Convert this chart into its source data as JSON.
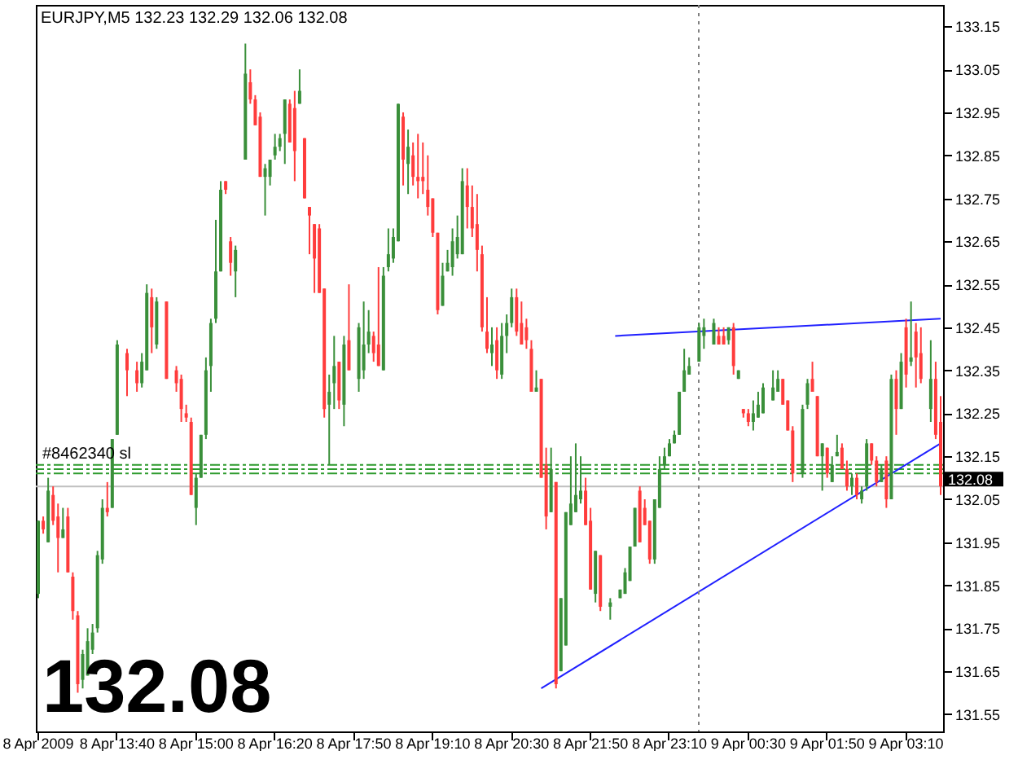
{
  "chart_data": {
    "type": "candlestick",
    "title": "EURJPY,M5  132.23 132.29 132.06 132.08",
    "categories": [
      "8 Apr 2009",
      null,
      null,
      null,
      null,
      null,
      null,
      null,
      null,
      null,
      null,
      null,
      null,
      null,
      null,
      null,
      "8 Apr 13:40",
      null,
      null,
      null,
      null,
      null,
      null,
      null,
      null,
      null,
      null,
      null,
      null,
      null,
      null,
      null,
      "8 Apr 15:00",
      null,
      null,
      null,
      null,
      null,
      null,
      null,
      null,
      null,
      null,
      null,
      null,
      null,
      null,
      null,
      "8 Apr 16:20",
      null,
      null,
      null,
      null,
      null,
      null,
      null,
      null,
      null,
      null,
      null,
      null,
      null,
      null,
      null,
      "8 Apr 17:50",
      null,
      null,
      null,
      null,
      null,
      null,
      null,
      null,
      null,
      null,
      null,
      null,
      null,
      null,
      null,
      "8 Apr 19:10",
      null,
      null,
      null,
      null,
      null,
      null,
      null,
      null,
      null,
      null,
      null,
      null,
      null,
      null,
      null,
      "8 Apr 20:30",
      null,
      null,
      null,
      null,
      null,
      null,
      null,
      null,
      null,
      null,
      null,
      null,
      null,
      null,
      null,
      "8 Apr 21:50",
      null,
      null,
      null,
      null,
      null,
      null,
      null,
      null,
      null,
      null,
      null,
      null,
      null,
      null,
      null,
      "8 Apr 23:10",
      null,
      null,
      null,
      null,
      null,
      null,
      null,
      null,
      null,
      null,
      null,
      null,
      null,
      null,
      null,
      "9 Apr 00:30",
      null,
      null,
      null,
      null,
      null,
      null,
      null,
      null,
      null,
      null,
      null,
      null,
      null,
      null,
      null,
      "9 Apr 01:50",
      null,
      null,
      null,
      null,
      null,
      null,
      null,
      null,
      null,
      null,
      null,
      null,
      null,
      null,
      null,
      "9 Apr 03:10",
      null,
      null,
      null,
      null,
      null,
      null,
      null
    ],
    "ohlc": [
      [
        131.83,
        132.0,
        131.82,
        132.0
      ],
      [
        132.0,
        132.01,
        131.97,
        131.98
      ],
      [
        131.95,
        132.1,
        131.95,
        132.07
      ],
      [
        132.06,
        132.08,
        131.99,
        132.0
      ],
      [
        132.01,
        132.04,
        131.88,
        131.96
      ],
      [
        131.96,
        132.03,
        131.96,
        131.98
      ],
      [
        132.01,
        132.03,
        131.88,
        131.88
      ],
      [
        131.87,
        131.88,
        131.77,
        131.79
      ],
      [
        131.78,
        131.79,
        131.6,
        131.62
      ],
      [
        131.63,
        131.7,
        131.61,
        131.69
      ],
      [
        131.64,
        131.75,
        131.64,
        131.72
      ],
      [
        131.7,
        131.76,
        131.69,
        131.74
      ],
      [
        131.75,
        131.93,
        131.74,
        131.92
      ],
      [
        131.91,
        132.05,
        131.9,
        132.03
      ],
      [
        132.03,
        132.09,
        132.01,
        132.02
      ],
      [
        132.03,
        132.19,
        132.03,
        132.19
      ],
      [
        132.2,
        132.42,
        132.2,
        132.41
      ],
      null,
      [
        132.39,
        132.4,
        132.29,
        132.35
      ],
      null,
      [
        132.35,
        132.37,
        132.3,
        132.32
      ],
      [
        132.32,
        132.39,
        132.31,
        132.37
      ],
      [
        132.35,
        132.55,
        132.35,
        132.53
      ],
      [
        132.52,
        132.54,
        132.39,
        132.45
      ],
      [
        132.41,
        132.52,
        132.4,
        132.51
      ],
      null,
      [
        132.51,
        132.51,
        132.33,
        132.33
      ],
      null,
      [
        132.35,
        132.36,
        132.3,
        132.32
      ],
      [
        132.33,
        132.34,
        132.23,
        132.26
      ],
      [
        132.25,
        132.27,
        132.23,
        132.24
      ],
      [
        132.23,
        132.24,
        132.06,
        132.06
      ],
      [
        132.03,
        132.11,
        131.99,
        132.1
      ],
      [
        132.1,
        132.2,
        132.1,
        132.2
      ],
      [
        132.2,
        132.38,
        132.19,
        132.35
      ],
      [
        132.36,
        132.47,
        132.3,
        132.46
      ],
      [
        132.47,
        132.7,
        132.46,
        132.58
      ],
      [
        132.58,
        132.79,
        132.58,
        132.77
      ],
      [
        132.79,
        132.79,
        132.76,
        132.77
      ],
      [
        132.65,
        132.66,
        132.57,
        132.6
      ],
      [
        132.58,
        132.64,
        132.52,
        132.63
      ],
      null,
      [
        132.84,
        133.11,
        132.84,
        133.04
      ],
      [
        133.02,
        133.05,
        132.97,
        132.98
      ],
      [
        132.98,
        132.99,
        132.92,
        132.92
      ],
      [
        132.94,
        132.95,
        132.8,
        132.8
      ],
      [
        132.8,
        132.83,
        132.71,
        132.82
      ],
      [
        132.8,
        132.84,
        132.78,
        132.84
      ],
      [
        132.85,
        132.9,
        132.84,
        132.87
      ],
      [
        132.87,
        132.9,
        132.86,
        132.89
      ],
      [
        132.9,
        132.98,
        132.83,
        132.98
      ],
      [
        132.97,
        132.98,
        132.88,
        132.88
      ],
      [
        132.96,
        133.0,
        132.79,
        132.86
      ],
      [
        132.97,
        133.05,
        132.97,
        133.0
      ],
      [
        132.89,
        132.89,
        132.75,
        132.75
      ],
      [
        132.73,
        132.73,
        132.62,
        132.71
      ],
      [
        132.69,
        132.69,
        132.53,
        132.61
      ],
      [
        132.68,
        132.69,
        132.53,
        132.53
      ],
      [
        132.54,
        132.54,
        132.24,
        132.26
      ],
      [
        132.27,
        132.34,
        132.13,
        132.3
      ],
      [
        132.32,
        132.43,
        132.26,
        132.36
      ],
      [
        132.37,
        132.37,
        132.26,
        132.28
      ],
      [
        132.27,
        132.43,
        132.22,
        132.41
      ],
      [
        132.42,
        132.55,
        132.35,
        132.35
      ],
      null,
      [
        132.33,
        132.46,
        132.3,
        132.45
      ],
      [
        132.35,
        132.51,
        132.33,
        132.41
      ],
      [
        132.41,
        132.49,
        132.39,
        132.44
      ],
      [
        132.43,
        132.44,
        132.37,
        132.39
      ],
      [
        132.41,
        132.59,
        132.36,
        132.36
      ],
      [
        132.35,
        132.59,
        132.35,
        132.57
      ],
      [
        132.59,
        132.68,
        132.58,
        132.62
      ],
      [
        132.61,
        132.68,
        132.6,
        132.66
      ],
      [
        132.65,
        132.97,
        132.65,
        132.97
      ],
      [
        132.94,
        132.95,
        132.78,
        132.84
      ],
      [
        132.83,
        132.91,
        132.76,
        132.87
      ],
      [
        132.85,
        132.88,
        132.78,
        132.8
      ],
      [
        132.8,
        132.9,
        132.75,
        132.79
      ],
      [
        132.8,
        132.88,
        132.76,
        132.79
      ],
      [
        132.77,
        132.85,
        132.71,
        132.73
      ],
      [
        132.75,
        132.75,
        132.66,
        132.67
      ],
      [
        132.67,
        132.67,
        132.48,
        132.49
      ],
      [
        132.5,
        132.6,
        132.5,
        132.57
      ],
      [
        132.58,
        132.63,
        132.58,
        132.6
      ],
      [
        132.59,
        132.68,
        132.57,
        132.65
      ],
      [
        132.62,
        132.71,
        132.61,
        132.66
      ],
      [
        132.62,
        132.82,
        132.62,
        132.79
      ],
      [
        132.78,
        132.82,
        132.68,
        132.73
      ],
      [
        132.73,
        132.78,
        132.66,
        132.68
      ],
      [
        132.69,
        132.76,
        132.58,
        132.63
      ],
      [
        132.62,
        132.64,
        132.44,
        132.45
      ],
      [
        132.44,
        132.52,
        132.39,
        132.4
      ],
      [
        132.39,
        132.45,
        132.36,
        132.41
      ],
      [
        132.42,
        132.45,
        132.33,
        132.35
      ],
      [
        132.34,
        132.46,
        132.33,
        132.43
      ],
      [
        132.43,
        132.48,
        132.39,
        132.46
      ],
      [
        132.46,
        132.54,
        132.45,
        132.52
      ],
      [
        132.52,
        132.54,
        132.43,
        132.44
      ],
      [
        132.46,
        132.51,
        132.41,
        132.41
      ],
      [
        132.45,
        132.47,
        132.4,
        132.42
      ],
      [
        132.4,
        132.42,
        132.3,
        132.3
      ],
      [
        132.3,
        132.35,
        132.3,
        132.31
      ],
      [
        132.33,
        132.33,
        132.1,
        132.1
      ],
      [
        132.13,
        132.17,
        131.98,
        132.01
      ],
      [
        132.02,
        132.17,
        132.02,
        132.12
      ],
      [
        132.09,
        132.09,
        131.61,
        131.62
      ],
      [
        131.65,
        131.82,
        131.65,
        131.82
      ],
      [
        131.71,
        132.02,
        131.71,
        132.02
      ],
      [
        131.99,
        132.15,
        131.99,
        132.04
      ],
      [
        132.02,
        132.18,
        132.02,
        132.06
      ],
      [
        132.05,
        132.15,
        132.04,
        132.07
      ],
      [
        132.07,
        132.1,
        131.99,
        131.99
      ],
      [
        132.0,
        132.03,
        131.84,
        131.84
      ],
      [
        131.83,
        131.93,
        131.81,
        131.93
      ],
      [
        131.92,
        131.92,
        131.79,
        131.8
      ],
      null,
      [
        131.8,
        131.82,
        131.77,
        131.81
      ],
      null,
      [
        131.82,
        131.84,
        131.82,
        131.84
      ],
      [
        131.83,
        131.89,
        131.83,
        131.88
      ],
      [
        131.86,
        131.94,
        131.86,
        131.94
      ],
      [
        131.94,
        132.03,
        131.94,
        132.03
      ],
      [
        132.07,
        132.08,
        131.95,
        131.95
      ],
      [
        132.03,
        132.05,
        131.99,
        131.99
      ],
      [
        132.0,
        132.0,
        131.9,
        131.91
      ],
      [
        131.91,
        132.05,
        131.9,
        132.05
      ],
      [
        132.03,
        132.15,
        132.03,
        132.12
      ],
      [
        132.13,
        132.17,
        132.12,
        132.15
      ],
      [
        132.15,
        132.19,
        132.15,
        132.18
      ],
      [
        132.18,
        132.21,
        132.18,
        132.2
      ],
      [
        132.2,
        132.3,
        132.2,
        132.3
      ],
      [
        132.3,
        132.4,
        132.3,
        132.35
      ],
      [
        132.34,
        132.38,
        132.34,
        132.36
      ],
      null,
      [
        132.37,
        132.46,
        132.37,
        132.45
      ],
      [
        132.43,
        132.47,
        132.4,
        132.45
      ],
      null,
      [
        132.41,
        132.47,
        132.41,
        132.46
      ],
      [
        132.43,
        132.45,
        132.41,
        132.41
      ],
      [
        132.43,
        132.45,
        132.41,
        132.41
      ],
      [
        132.42,
        132.45,
        132.41,
        132.45
      ],
      [
        132.45,
        132.46,
        132.34,
        132.36
      ],
      [
        132.33,
        132.35,
        132.33,
        132.35
      ],
      [
        132.26,
        132.26,
        132.24,
        132.25
      ],
      [
        132.25,
        132.26,
        132.22,
        132.23
      ],
      [
        132.23,
        132.28,
        132.21,
        132.25
      ],
      [
        132.24,
        132.3,
        132.24,
        132.27
      ],
      [
        132.25,
        132.32,
        132.25,
        132.31
      ],
      null,
      [
        132.28,
        132.35,
        132.28,
        132.31
      ],
      [
        132.3,
        132.35,
        132.3,
        132.33
      ],
      [
        132.33,
        132.33,
        132.27,
        132.27
      ],
      [
        132.28,
        132.28,
        132.21,
        132.21
      ],
      [
        132.21,
        132.22,
        132.09,
        132.11
      ],
      null,
      [
        132.11,
        132.27,
        132.1,
        132.26
      ],
      [
        132.27,
        132.33,
        132.26,
        132.32
      ],
      [
        132.33,
        132.37,
        132.3,
        132.3
      ],
      [
        132.29,
        132.29,
        132.15,
        132.15
      ],
      [
        132.15,
        132.18,
        132.07,
        132.18
      ],
      [
        132.17,
        132.17,
        132.1,
        132.11
      ],
      [
        132.09,
        132.15,
        132.09,
        132.13
      ],
      [
        132.15,
        132.2,
        132.15,
        132.16
      ],
      [
        132.17,
        132.18,
        132.12,
        132.12
      ],
      [
        132.12,
        132.14,
        132.07,
        132.08
      ],
      [
        132.08,
        132.11,
        132.06,
        132.1
      ],
      [
        132.1,
        132.11,
        132.05,
        132.06
      ],
      [
        132.05,
        132.08,
        132.04,
        132.07
      ],
      [
        132.08,
        132.19,
        132.07,
        132.18
      ],
      [
        132.18,
        132.18,
        132.13,
        132.14
      ],
      [
        132.14,
        132.15,
        132.08,
        132.09
      ],
      [
        132.09,
        132.13,
        132.09,
        132.12
      ],
      [
        132.14,
        132.15,
        132.03,
        132.05
      ],
      [
        132.05,
        132.34,
        132.05,
        132.33
      ],
      [
        132.33,
        132.35,
        132.2,
        132.26
      ],
      [
        132.26,
        132.39,
        132.26,
        132.37
      ],
      [
        132.45,
        132.47,
        132.31,
        132.34
      ],
      [
        132.37,
        132.51,
        132.36,
        132.38
      ],
      [
        132.44,
        132.46,
        132.31,
        132.38
      ],
      [
        132.39,
        132.45,
        132.32,
        132.33
      ],
      null,
      [
        132.26,
        132.42,
        132.23,
        132.33
      ],
      [
        132.33,
        132.37,
        132.19,
        132.2
      ],
      [
        132.23,
        132.29,
        132.06,
        132.08
      ]
    ],
    "colors": [
      "#3a8f3a",
      "#ff3c3c",
      "#3a8f3a",
      "#ff3c3c",
      "#ff3c3c",
      "#3a8f3a",
      "#ff3c3c",
      "#ff3c3c",
      "#ff3c3c",
      "#3a8f3a",
      "#3a8f3a",
      "#3a8f3a",
      "#3a8f3a",
      "#3a8f3a",
      "#ff3c3c",
      "#3a8f3a",
      "#3a8f3a",
      null,
      "#ff3c3c",
      null,
      "#ff3c3c",
      "#3a8f3a",
      "#3a8f3a",
      "#ff3c3c",
      "#3a8f3a",
      null,
      "#ff3c3c",
      null,
      "#ff3c3c",
      "#ff3c3c",
      "#ff3c3c",
      "#ff3c3c",
      "#3a8f3a",
      "#3a8f3a",
      "#3a8f3a",
      "#3a8f3a",
      "#3a8f3a",
      "#3a8f3a",
      "#ff3c3c",
      "#ff3c3c",
      "#3a8f3a",
      null,
      "#3a8f3a",
      "#ff3c3c",
      "#ff3c3c",
      "#ff3c3c",
      "#3a8f3a",
      "#3a8f3a",
      "#3a8f3a",
      "#3a8f3a",
      "#3a8f3a",
      "#ff3c3c",
      "#ff3c3c",
      "#3a8f3a",
      "#ff3c3c",
      "#ff3c3c",
      "#ff3c3c",
      "#ff3c3c",
      "#ff3c3c",
      "#3a8f3a",
      "#3a8f3a",
      "#ff3c3c",
      "#3a8f3a",
      "#ff3c3c",
      null,
      "#3a8f3a",
      "#3a8f3a",
      "#3a8f3a",
      "#ff3c3c",
      "#ff3c3c",
      "#3a8f3a",
      "#3a8f3a",
      "#3a8f3a",
      "#3a8f3a",
      "#ff3c3c",
      "#3a8f3a",
      "#ff3c3c",
      "#ff3c3c",
      "#ff3c3c",
      "#ff3c3c",
      "#ff3c3c",
      "#ff3c3c",
      "#3a8f3a",
      "#3a8f3a",
      "#3a8f3a",
      "#3a8f3a",
      "#3a8f3a",
      "#ff3c3c",
      "#ff3c3c",
      "#ff3c3c",
      "#ff3c3c",
      "#ff3c3c",
      "#3a8f3a",
      "#ff3c3c",
      "#3a8f3a",
      "#3a8f3a",
      "#3a8f3a",
      "#ff3c3c",
      "#ff3c3c",
      "#ff3c3c",
      "#ff3c3c",
      "#3a8f3a",
      "#ff3c3c",
      "#ff3c3c",
      "#3a8f3a",
      "#ff3c3c",
      "#3a8f3a",
      "#3a8f3a",
      "#3a8f3a",
      "#3a8f3a",
      "#3a8f3a",
      "#ff3c3c",
      "#ff3c3c",
      "#3a8f3a",
      "#ff3c3c",
      null,
      "#3a8f3a",
      null,
      "#3a8f3a",
      "#3a8f3a",
      "#3a8f3a",
      "#3a8f3a",
      "#ff3c3c",
      "#ff3c3c",
      "#ff3c3c",
      "#3a8f3a",
      "#3a8f3a",
      "#3a8f3a",
      "#3a8f3a",
      "#3a8f3a",
      "#3a8f3a",
      "#3a8f3a",
      "#3a8f3a",
      null,
      "#3a8f3a",
      "#3a8f3a",
      null,
      "#3a8f3a",
      "#ff3c3c",
      "#ff3c3c",
      "#3a8f3a",
      "#ff3c3c",
      "#3a8f3a",
      "#ff3c3c",
      "#ff3c3c",
      "#3a8f3a",
      "#3a8f3a",
      "#3a8f3a",
      null,
      "#3a8f3a",
      "#3a8f3a",
      "#ff3c3c",
      "#ff3c3c",
      "#ff3c3c",
      null,
      "#3a8f3a",
      "#3a8f3a",
      "#ff3c3c",
      "#ff3c3c",
      "#3a8f3a",
      "#ff3c3c",
      "#3a8f3a",
      "#3a8f3a",
      "#ff3c3c",
      "#ff3c3c",
      "#3a8f3a",
      "#ff3c3c",
      "#3a8f3a",
      "#3a8f3a",
      "#ff3c3c",
      "#ff3c3c",
      "#3a8f3a",
      "#ff3c3c",
      "#3a8f3a",
      "#ff3c3c",
      "#3a8f3a",
      "#ff3c3c",
      "#3a8f3a",
      "#ff3c3c",
      "#ff3c3c",
      null,
      "#3a8f3a",
      "#ff3c3c",
      "#ff3c3c"
    ],
    "series": [
      {
        "type": "line",
        "color": "#2020ff",
        "values": [
          null,
          null,
          null,
          null,
          null,
          null,
          null,
          null,
          null,
          null,
          null,
          null,
          null,
          null,
          null,
          null,
          null,
          null,
          null,
          null,
          null,
          null,
          null,
          null,
          null,
          null,
          null,
          null,
          null,
          null,
          null,
          null,
          null,
          null,
          null,
          null,
          null,
          null,
          null,
          null,
          null,
          null,
          null,
          null,
          null,
          null,
          null,
          null,
          null,
          null,
          null,
          null,
          null,
          null,
          null,
          null,
          null,
          null,
          null,
          null,
          null,
          null,
          null,
          null,
          null,
          null,
          null,
          null,
          null,
          null,
          null,
          null,
          null,
          null,
          null,
          null,
          null,
          null,
          null,
          null,
          null,
          null,
          null,
          null,
          null,
          null,
          null,
          null,
          null,
          null,
          null,
          null,
          null,
          null,
          null,
          null,
          null,
          null,
          null,
          null,
          null,
          null,
          null,
          null,
          null,
          null,
          null,
          null,
          null,
          null,
          null,
          null,
          null,
          null,
          null,
          null,
          null,
          132.43,
          null,
          null,
          null,
          null,
          null,
          null,
          null,
          null,
          null,
          null,
          null,
          null,
          null,
          null,
          null,
          null,
          null,
          null,
          null,
          null,
          null,
          null,
          null,
          null,
          null,
          null,
          null,
          null,
          null,
          null,
          null,
          null,
          null,
          null,
          null,
          null,
          null,
          null,
          null,
          null,
          null,
          null,
          null,
          null,
          null,
          null,
          null,
          null,
          null,
          null,
          null,
          null,
          null,
          null,
          null,
          null,
          null,
          null,
          null,
          null,
          null,
          null,
          null,
          null,
          null,
          132.47
        ]
      },
      {
        "type": "line",
        "color": "#2020ff",
        "values": [
          null,
          null,
          null,
          null,
          null,
          null,
          null,
          null,
          null,
          null,
          null,
          null,
          null,
          null,
          null,
          null,
          null,
          null,
          null,
          null,
          null,
          null,
          null,
          null,
          null,
          null,
          null,
          null,
          null,
          null,
          null,
          null,
          null,
          null,
          null,
          null,
          null,
          null,
          null,
          null,
          null,
          null,
          null,
          null,
          null,
          null,
          null,
          null,
          null,
          null,
          null,
          null,
          null,
          null,
          null,
          null,
          null,
          null,
          null,
          null,
          null,
          null,
          null,
          null,
          null,
          null,
          null,
          null,
          null,
          null,
          null,
          null,
          null,
          null,
          null,
          null,
          null,
          null,
          null,
          null,
          null,
          null,
          null,
          null,
          null,
          null,
          null,
          null,
          null,
          null,
          null,
          null,
          null,
          null,
          null,
          null,
          null,
          null,
          null,
          null,
          null,
          null,
          131.61,
          null,
          null,
          null,
          null,
          null,
          null,
          null,
          null,
          null,
          null,
          null,
          null,
          null,
          null,
          null,
          null,
          null,
          null,
          null,
          null,
          null,
          null,
          null,
          null,
          null,
          null,
          null,
          null,
          null,
          null,
          null,
          null,
          null,
          null,
          null,
          null,
          null,
          null,
          null,
          null,
          null,
          null,
          null,
          null,
          null,
          null,
          null,
          null,
          null,
          null,
          null,
          null,
          null,
          null,
          null,
          null,
          null,
          null,
          null,
          null,
          null,
          null,
          null,
          null,
          null,
          null,
          null,
          null,
          null,
          null,
          null,
          null,
          null,
          null,
          null,
          null,
          null,
          null,
          null,
          null,
          132.18
        ]
      }
    ],
    "ylim": [
      131.51,
      133.2
    ],
    "yticks": [
      131.55,
      131.65,
      131.75,
      131.85,
      131.95,
      132.05,
      132.15,
      132.25,
      132.35,
      132.45,
      132.55,
      132.65,
      132.75,
      132.85,
      132.95,
      133.05,
      133.15
    ],
    "ref_lines": [
      {
        "axis": "y",
        "value": 132.13,
        "label": "#8462340 sl",
        "color": "#2e9b2e",
        "line_style": "dashed"
      },
      {
        "axis": "y",
        "value": 132.12,
        "color": "#2e9b2e",
        "line_style": "dashed"
      },
      {
        "axis": "y",
        "value": 132.11,
        "color": "#2e9b2e",
        "line_style": "dashed"
      },
      {
        "axis": "y",
        "value": 132.08,
        "label": "132.08",
        "color": "#c0c0c0",
        "line_style": "solid"
      }
    ],
    "annotations": [
      "132.08"
    ]
  }
}
